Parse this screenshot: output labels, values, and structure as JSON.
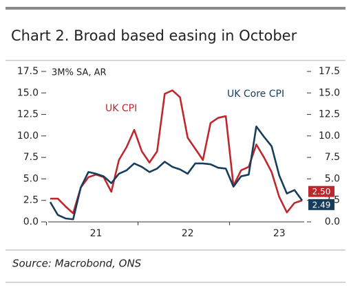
{
  "chart_data": {
    "type": "line",
    "title": "Chart 2. Broad based easing in October",
    "y_label": "3M% SA, AR",
    "source": "Source: Macrobond, ONS",
    "categories": [
      null,
      null,
      null,
      null,
      null,
      null,
      "21",
      null,
      null,
      null,
      null,
      null,
      null,
      null,
      null,
      null,
      null,
      null,
      "22",
      null,
      null,
      null,
      null,
      null,
      null,
      null,
      null,
      null,
      null,
      null,
      "23",
      null,
      null,
      null
    ],
    "series": [
      {
        "name": "UK CPI",
        "color": "#c0272d",
        "values": [
          2.7,
          2.7,
          1.8,
          1.0,
          4.0,
          5.2,
          5.5,
          5.2,
          3.5,
          7.2,
          8.7,
          10.7,
          8.2,
          6.9,
          8.2,
          14.9,
          15.3,
          14.5,
          9.8,
          8.5,
          7.2,
          11.5,
          12.1,
          12.3,
          4.2,
          6.0,
          6.4,
          9.0,
          7.5,
          5.8,
          2.9,
          1.1,
          2.2,
          2.5
        ],
        "value_labels": [
          null,
          null,
          null,
          null,
          null,
          null,
          null,
          null,
          null,
          null,
          null,
          null,
          null,
          null,
          null,
          null,
          null,
          null,
          null,
          null,
          null,
          null,
          null,
          null,
          null,
          null,
          null,
          null,
          null,
          null,
          null,
          null,
          null,
          "2.50"
        ]
      },
      {
        "name": "UK Core CPI",
        "color": "#173d5c",
        "values": [
          2.3,
          0.8,
          0.4,
          0.3,
          4.0,
          5.8,
          5.6,
          5.3,
          4.5,
          5.6,
          6.0,
          6.8,
          6.4,
          5.8,
          6.2,
          7.0,
          6.4,
          6.1,
          5.6,
          6.8,
          6.8,
          6.7,
          6.3,
          6.2,
          4.1,
          5.3,
          5.5,
          11.1,
          9.9,
          8.8,
          5.4,
          3.3,
          3.7,
          2.49
        ],
        "value_labels": [
          null,
          null,
          null,
          null,
          null,
          null,
          null,
          null,
          null,
          null,
          null,
          null,
          null,
          null,
          null,
          null,
          null,
          null,
          null,
          null,
          null,
          null,
          null,
          null,
          null,
          null,
          null,
          null,
          null,
          null,
          null,
          null,
          null,
          "2.49"
        ]
      }
    ],
    "ylim": [
      0,
      17.5
    ],
    "yticks": [
      {
        "value": 0,
        "label": "0.0"
      },
      2.5,
      {
        "value": 5,
        "label": "5.0"
      },
      7.5,
      {
        "value": 10,
        "label": "10.0"
      },
      12.5,
      {
        "value": 15,
        "label": "15.0"
      },
      17.5
    ],
    "y2lim": [
      0,
      17.5
    ],
    "y2ticks": [
      {
        "value": 0,
        "label": "0.0"
      },
      2.5,
      {
        "value": 5,
        "label": "5.0"
      },
      7.5,
      {
        "value": 10,
        "label": "10.0"
      },
      12.5,
      {
        "value": 15,
        "label": "15.0"
      },
      17.5
    ],
    "grid": false
  }
}
